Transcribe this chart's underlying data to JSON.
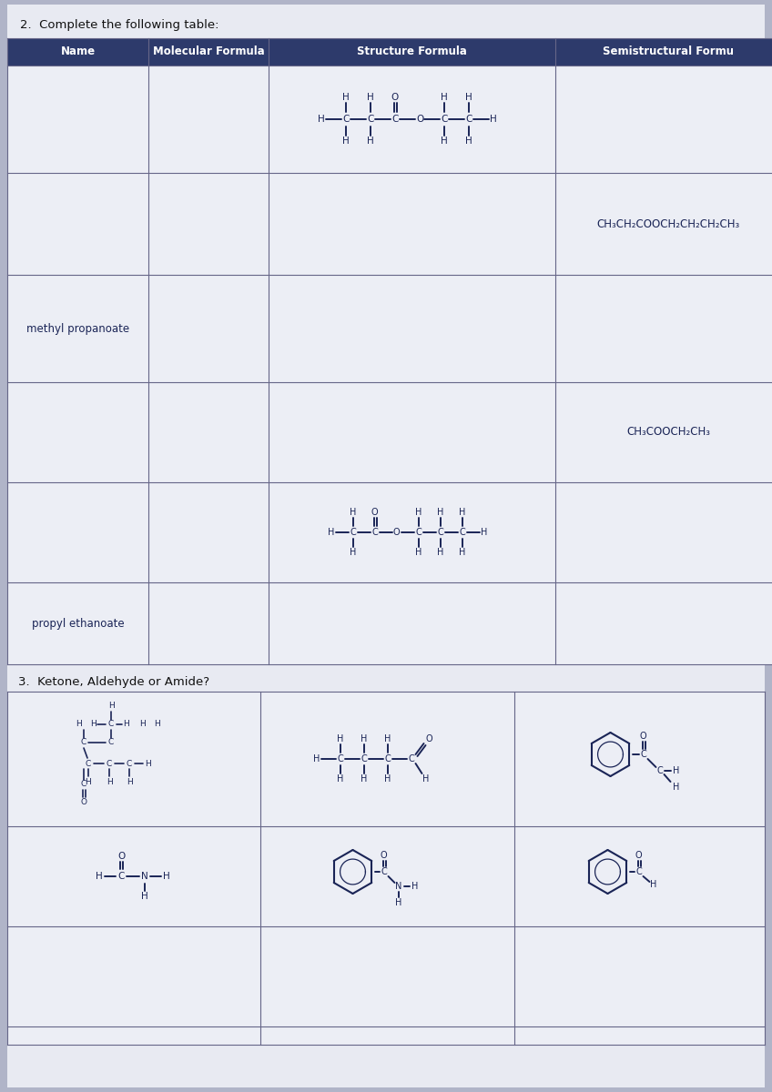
{
  "title_q2": "2.  Complete the following table:",
  "title_q3": "3.  Ketone, Aldehyde or Amide?",
  "col_headers": [
    "Name",
    "Molecular Formula",
    "Structure Formula",
    "Semistructural Formu"
  ],
  "header_bg": "#2d3a6b",
  "header_fg": "#ffffff",
  "paper_bg": "#e8eaf2",
  "cell_bg": "#eceef5",
  "outer_bg": "#b0b4c8",
  "row2_semistructural": "CH₃CH₂COOCH₂CH₂CH₂CH₃",
  "row3_name": "methyl propanoate",
  "row4_semistructural": "CH₃COOCH₂CH₃",
  "row5_name": "propyl ethanoate",
  "ink": "#1a2456"
}
